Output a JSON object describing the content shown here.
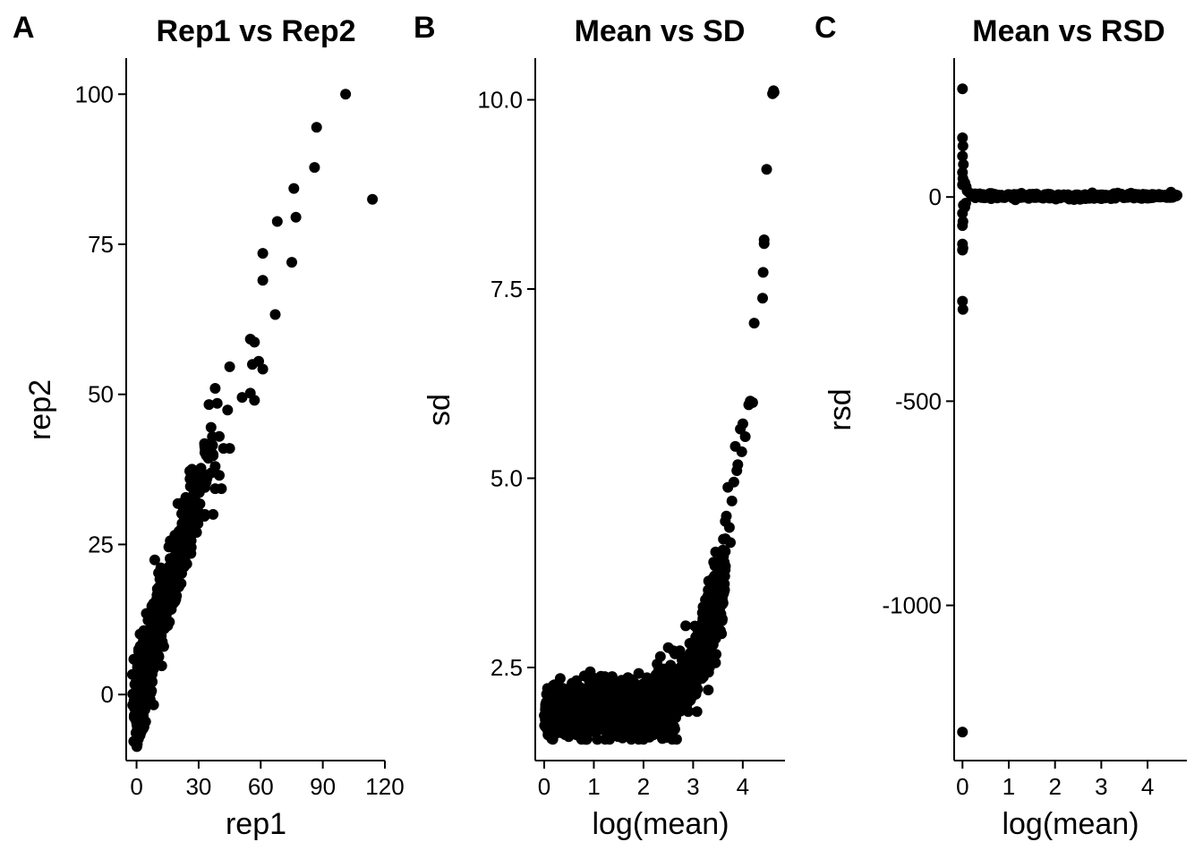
{
  "chart_data": [
    {
      "letter": "A",
      "type": "scatter",
      "title": "Rep1 vs Rep2",
      "xlabel": "rep1",
      "ylabel": "rep2",
      "xlim": [
        -5,
        120
      ],
      "ylim": [
        -11,
        106
      ],
      "xticks": [
        0,
        30,
        60,
        90,
        120
      ],
      "xtick_labels": [
        "0",
        "30",
        "60",
        "90",
        "120"
      ],
      "yticks": [
        0,
        25,
        50,
        75,
        100
      ],
      "ytick_labels": [
        "0",
        "25",
        "50",
        "75",
        "100"
      ],
      "points": [
        [
          101,
          100
        ],
        [
          87,
          94.5
        ],
        [
          114,
          82.5
        ],
        [
          86,
          87.8
        ],
        [
          76,
          84.3
        ],
        [
          77,
          79.5
        ],
        [
          68,
          78.8
        ],
        [
          61,
          73.5
        ],
        [
          75,
          72
        ],
        [
          61,
          69
        ],
        [
          67,
          63.3
        ],
        [
          55,
          59.2
        ],
        [
          57,
          58.7
        ],
        [
          56,
          55
        ],
        [
          59,
          55.5
        ],
        [
          61,
          54.2
        ],
        [
          45,
          54.6
        ],
        [
          55,
          50.2
        ],
        [
          51,
          49.5
        ],
        [
          57,
          49
        ],
        [
          38,
          51
        ],
        [
          35,
          48.3
        ],
        [
          39,
          48.5
        ],
        [
          44,
          47.4
        ],
        [
          36,
          44.5
        ],
        [
          40,
          43
        ],
        [
          45,
          41
        ],
        [
          42,
          41
        ],
        [
          36,
          40.5
        ],
        [
          33,
          40.3
        ],
        [
          37,
          39.8
        ],
        [
          38,
          38
        ],
        [
          40,
          36.5
        ],
        [
          34,
          36
        ],
        [
          28,
          36
        ],
        [
          31,
          35
        ],
        [
          33,
          34.5
        ],
        [
          38,
          34.3
        ],
        [
          41,
          34.3
        ],
        [
          37,
          30
        ],
        [
          33,
          30
        ],
        [
          26,
          31.8
        ],
        [
          20,
          31.8
        ],
        [
          24,
          30
        ],
        [
          22,
          28.5
        ],
        [
          29,
          27
        ],
        [
          25,
          25.5
        ]
      ],
      "cloud": [
        {
          "from": [
            0,
            0
          ],
          "to": [
            30,
            34
          ],
          "spread": 3.2,
          "n": 320
        },
        {
          "from": [
            0,
            -3
          ],
          "to": [
            12,
            14
          ],
          "spread": 2.6,
          "n": 420
        },
        {
          "from": [
            1,
            0
          ],
          "to": [
            6,
            8
          ],
          "spread": 2.2,
          "n": 320
        },
        {
          "from": [
            2,
            -6
          ],
          "to": [
            5,
            3
          ],
          "spread": 1.2,
          "n": 80
        },
        {
          "from": [
            18,
            22
          ],
          "to": [
            38,
            42
          ],
          "spread": 2.5,
          "n": 60
        }
      ]
    },
    {
      "letter": "B",
      "type": "scatter",
      "title": "Mean vs SD",
      "xlabel": "log(mean)",
      "ylabel": "sd",
      "xlim": [
        -0.18,
        4.85
      ],
      "ylim": [
        1.27,
        10.55
      ],
      "xticks": [
        0,
        1,
        2,
        3,
        4
      ],
      "xtick_labels": [
        "0",
        "1",
        "2",
        "3",
        "4"
      ],
      "yticks": [
        2.5,
        5.0,
        7.5,
        10.0
      ],
      "ytick_labels": [
        "2.5",
        "5.0",
        "7.5",
        "10.0"
      ],
      "points": [
        [
          4.62,
          10.12
        ],
        [
          4.6,
          10.08
        ],
        [
          4.63,
          10.1
        ],
        [
          4.48,
          9.08
        ],
        [
          4.43,
          8.15
        ],
        [
          4.43,
          8.1
        ],
        [
          4.41,
          7.72
        ],
        [
          4.4,
          7.38
        ],
        [
          4.23,
          7.05
        ],
        [
          4.15,
          6.02
        ],
        [
          4.2,
          6.0
        ],
        [
          4.12,
          5.97
        ],
        [
          4.0,
          5.72
        ],
        [
          3.95,
          5.65
        ],
        [
          4.05,
          5.55
        ],
        [
          3.85,
          5.42
        ],
        [
          3.98,
          5.35
        ],
        [
          3.88,
          5.1
        ],
        [
          3.9,
          5.18
        ],
        [
          3.82,
          4.95
        ],
        [
          3.7,
          4.88
        ],
        [
          3.78,
          4.7
        ],
        [
          3.67,
          4.5
        ],
        [
          3.73,
          4.35
        ],
        [
          3.65,
          4.2
        ],
        [
          3.6,
          4.05
        ],
        [
          3.75,
          4.15
        ],
        [
          3.55,
          3.85
        ],
        [
          3.5,
          3.75
        ],
        [
          3.62,
          3.7
        ],
        [
          2.6,
          2.72
        ],
        [
          2.85,
          3.05
        ],
        [
          3.05,
          2.9
        ],
        [
          3.2,
          3.3
        ],
        [
          3.3,
          3.45
        ]
      ],
      "cloud_fn": {
        "x_range": [
          0,
          3.65
        ],
        "base": 1.95,
        "spread": 0.18,
        "growth": [
          2.4,
          2.0
        ],
        "n": 1600
      }
    },
    {
      "letter": "C",
      "type": "scatter",
      "title": "Mean vs RSD",
      "xlabel": "log(mean)",
      "ylabel": "rsd",
      "xlim": [
        -0.18,
        4.85
      ],
      "ylim": [
        -1380,
        340
      ],
      "xticks": [
        0,
        1,
        2,
        3,
        4
      ],
      "xtick_labels": [
        "0",
        "1",
        "2",
        "3",
        "4"
      ],
      "yticks": [
        -1000,
        -500,
        0
      ],
      "ytick_labels": [
        "-1000",
        "-500",
        "0"
      ],
      "points": [
        [
          0.0,
          265
        ],
        [
          0.0,
          145
        ],
        [
          0.01,
          125
        ],
        [
          0.0,
          100
        ],
        [
          0.02,
          80
        ],
        [
          0.0,
          60
        ],
        [
          0.01,
          45
        ],
        [
          0.0,
          30
        ],
        [
          0.02,
          -20
        ],
        [
          0.0,
          -40
        ],
        [
          0.01,
          -60
        ],
        [
          0.0,
          -70
        ],
        [
          0.0,
          -115
        ],
        [
          0.01,
          -125
        ],
        [
          0.0,
          -130
        ],
        [
          0.0,
          -255
        ],
        [
          0.01,
          -275
        ],
        [
          0.0,
          -1310
        ],
        [
          0.05,
          35
        ],
        [
          0.08,
          25
        ],
        [
          0.1,
          15
        ],
        [
          0.15,
          10
        ],
        [
          0.2,
          6
        ],
        [
          0.05,
          -25
        ],
        [
          0.07,
          -15
        ]
      ],
      "band": {
        "x_range": [
          0.2,
          4.65
        ],
        "y": 2,
        "spread": 3,
        "n": 340
      }
    }
  ]
}
